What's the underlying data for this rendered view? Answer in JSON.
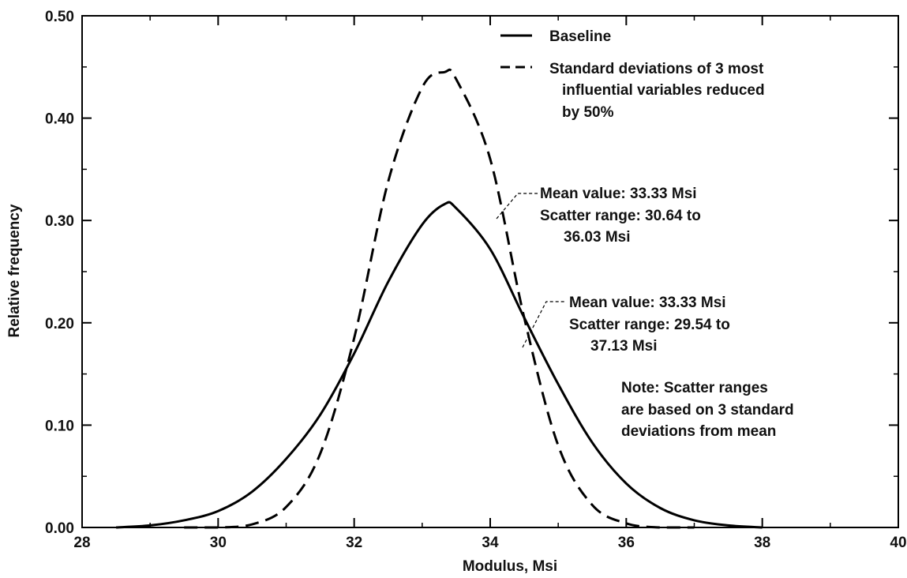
{
  "chart_data": {
    "type": "line",
    "xlabel": "Modulus, Msi",
    "ylabel": "Relative frequency",
    "xlim": [
      28,
      40
    ],
    "ylim": [
      0,
      0.5
    ],
    "x_ticks": [
      28,
      30,
      32,
      34,
      36,
      38,
      40
    ],
    "x_tick_labels": [
      "28",
      "30",
      "32",
      "34",
      "36",
      "38",
      "40"
    ],
    "y_ticks": [
      0,
      0.1,
      0.2,
      0.3,
      0.4,
      0.5
    ],
    "y_tick_labels": [
      "0.00",
      "0.10",
      "0.20",
      "0.30",
      "0.40",
      "0.50"
    ],
    "grid": false,
    "legend_position": "top-right",
    "series": [
      {
        "name": "Baseline",
        "style": "solid",
        "color": "#000000",
        "x": [
          28.5,
          29.0,
          29.5,
          30.0,
          30.5,
          31.0,
          31.5,
          32.0,
          32.5,
          33.0,
          33.33,
          33.5,
          34.0,
          34.5,
          35.0,
          35.5,
          36.0,
          36.5,
          37.0,
          37.5,
          38.0
        ],
        "y": [
          0.0,
          0.002,
          0.007,
          0.016,
          0.035,
          0.067,
          0.11,
          0.17,
          0.24,
          0.296,
          0.316,
          0.312,
          0.272,
          0.205,
          0.14,
          0.083,
          0.043,
          0.019,
          0.007,
          0.002,
          0.0
        ]
      },
      {
        "name": "Standard deviations of 3 most influential variables reduced by 50%",
        "style": "dashed",
        "color": "#000000",
        "x": [
          29.5,
          30.0,
          30.5,
          31.0,
          31.5,
          32.0,
          32.5,
          33.0,
          33.33,
          33.5,
          34.0,
          34.5,
          35.0,
          35.5,
          36.0,
          36.5,
          37.0
        ],
        "y": [
          0.0,
          0.0,
          0.003,
          0.02,
          0.072,
          0.185,
          0.338,
          0.43,
          0.445,
          0.438,
          0.36,
          0.205,
          0.08,
          0.022,
          0.004,
          0.0,
          0.0
        ]
      }
    ],
    "legend": {
      "baseline_label": "Baseline",
      "reduced_label_lines": [
        "Standard deviations of 3 most",
        "influential variables reduced",
        "by 50%"
      ]
    },
    "annotations": {
      "reduced": [
        "Mean value: 33.33 Msi",
        "Scatter range: 30.64 to",
        "36.03 Msi"
      ],
      "baseline": [
        "Mean value: 33.33 Msi",
        "Scatter range: 29.54 to",
        "37.13 Msi"
      ],
      "note": [
        "Note: Scatter ranges",
        "are based on 3 standard",
        "deviations from mean"
      ]
    }
  }
}
